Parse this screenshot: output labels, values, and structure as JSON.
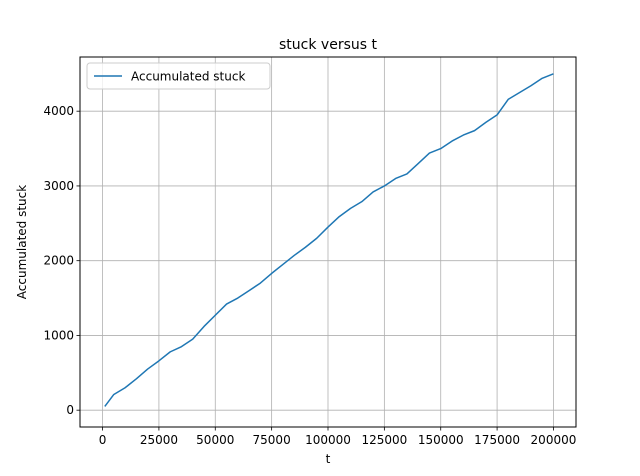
{
  "chart_data": {
    "type": "line",
    "title": "stuck versus t",
    "xlabel": "t",
    "ylabel": "Accumulated stuck",
    "xlim": [
      -10000,
      210000
    ],
    "ylim": [
      -225,
      4725
    ],
    "xticks": [
      0,
      25000,
      50000,
      75000,
      100000,
      125000,
      150000,
      175000,
      200000
    ],
    "xtick_labels": [
      "0",
      "25000",
      "50000",
      "75000",
      "100000",
      "125000",
      "150000",
      "175000",
      "200000"
    ],
    "yticks": [
      0,
      1000,
      2000,
      3000,
      4000
    ],
    "ytick_labels": [
      "0",
      "1000",
      "2000",
      "3000",
      "4000"
    ],
    "grid": true,
    "legend_position": "upper left",
    "series": [
      {
        "name": "Accumulated stuck",
        "color": "#1f77b4",
        "x": [
          1000,
          5000,
          10000,
          15000,
          20000,
          25000,
          30000,
          35000,
          40000,
          45000,
          50000,
          55000,
          60000,
          65000,
          70000,
          75000,
          80000,
          85000,
          90000,
          95000,
          100000,
          105000,
          110000,
          115000,
          120000,
          125000,
          130000,
          135000,
          140000,
          145000,
          150000,
          155000,
          160000,
          165000,
          170000,
          175000,
          180000,
          185000,
          190000,
          195000,
          200000
        ],
        "y": [
          50,
          210,
          300,
          420,
          550,
          660,
          780,
          850,
          950,
          1120,
          1270,
          1420,
          1500,
          1600,
          1700,
          1830,
          1950,
          2070,
          2180,
          2300,
          2450,
          2590,
          2700,
          2790,
          2920,
          3000,
          3100,
          3160,
          3300,
          3440,
          3500,
          3600,
          3680,
          3740,
          3850,
          3950,
          4160,
          4250,
          4340,
          4440,
          4500
        ]
      }
    ]
  }
}
